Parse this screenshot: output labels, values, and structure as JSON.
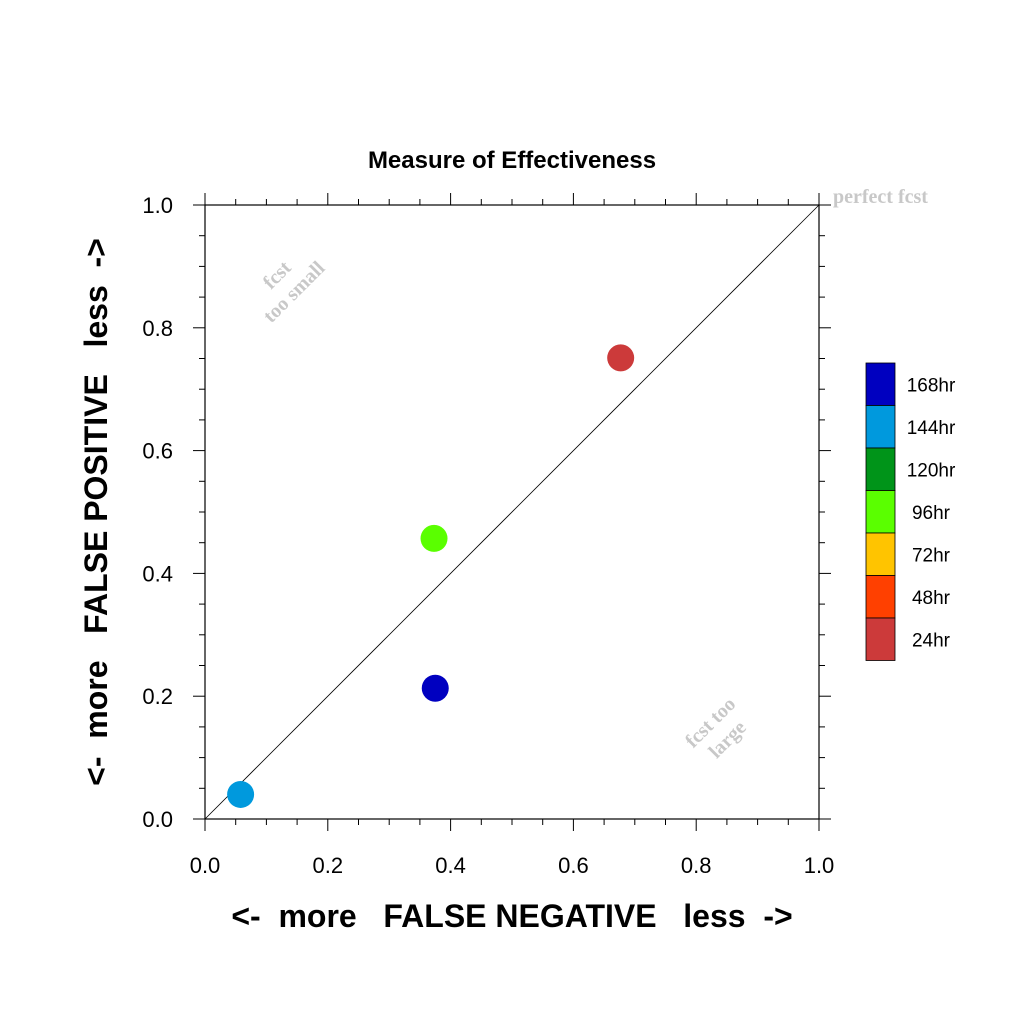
{
  "chart_data": {
    "type": "scatter",
    "title": "Measure of Effectiveness",
    "xlabel": "<-  more   FALSE NEGATIVE   less  ->",
    "ylabel": "<-  more   FALSE POSITIVE   less  ->",
    "xlim": [
      0.0,
      1.0
    ],
    "ylim": [
      0.0,
      1.0
    ],
    "x_ticks": [
      "0.0",
      "0.2",
      "0.4",
      "0.6",
      "0.8",
      "1.0"
    ],
    "y_ticks": [
      "0.0",
      "0.2",
      "0.4",
      "0.6",
      "0.8",
      "1.0"
    ],
    "grid": false,
    "diagonal_line": true,
    "annotations": {
      "perfect": "perfect fcst",
      "too_small_line1": "fcst",
      "too_small_line2": "too small",
      "too_large_line1": "fcst too",
      "too_large_line2": "large"
    },
    "legend": [
      {
        "label": "168hr",
        "color": "#0000c0"
      },
      {
        "label": "144hr",
        "color": "#0099dd"
      },
      {
        "label": "120hr",
        "color": "#009419"
      },
      {
        "label": "96hr",
        "color": "#5aff00"
      },
      {
        "label": "72hr",
        "color": "#ffc400"
      },
      {
        "label": "48hr",
        "color": "#ff4000"
      },
      {
        "label": "24hr",
        "color": "#cc3a3a"
      }
    ],
    "points": [
      {
        "x": 0.058,
        "y": 0.04,
        "series": "144hr",
        "color": "#0099dd"
      },
      {
        "x": 0.375,
        "y": 0.213,
        "series": "168hr",
        "color": "#0000c0"
      },
      {
        "x": 0.373,
        "y": 0.457,
        "series": "96hr",
        "color": "#5aff00"
      },
      {
        "x": 0.677,
        "y": 0.751,
        "series": "24hr",
        "color": "#cc3a3a"
      }
    ]
  }
}
